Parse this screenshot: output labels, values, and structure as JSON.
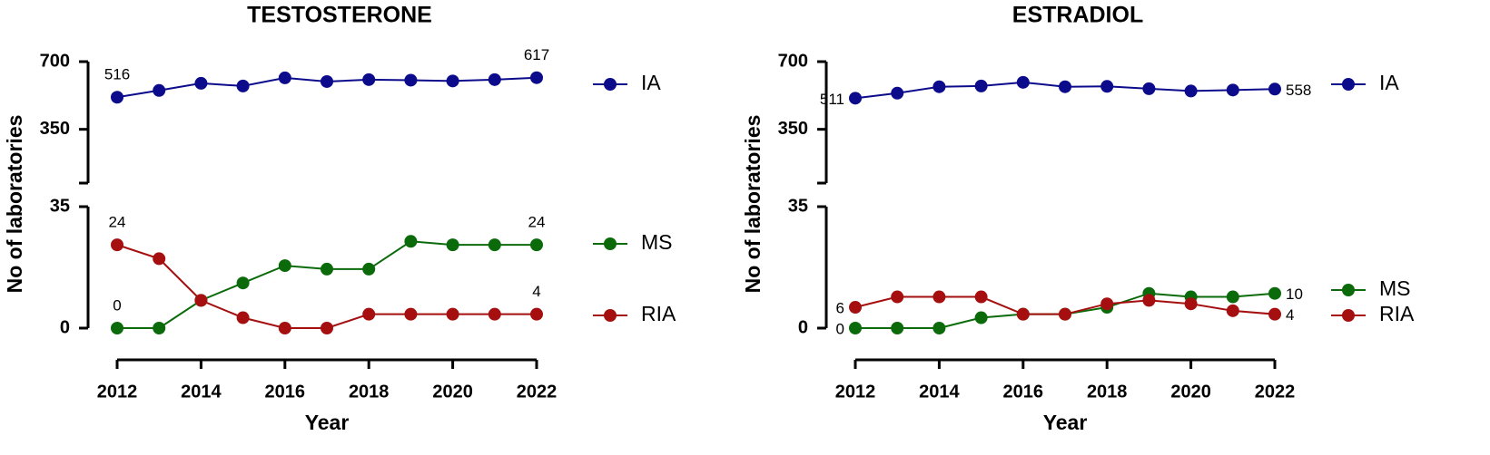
{
  "chart_data": [
    {
      "type": "line",
      "title": "TESTOSTERONE",
      "x_label": "Year",
      "y_label": "No of laboratories",
      "x": [
        2012,
        2013,
        2014,
        2015,
        2016,
        2017,
        2018,
        2019,
        2020,
        2021,
        2022
      ],
      "xlim": [
        2012,
        2022
      ],
      "xticks": [
        2012,
        2014,
        2016,
        2018,
        2020,
        2022
      ],
      "ylim": [
        0,
        35
      ],
      "yticks": [
        0,
        35
      ],
      "y2lim": [
        100,
        700
      ],
      "y2ticks": [
        350,
        700
      ],
      "label_points": "ends",
      "series": [
        {
          "name": "IA",
          "color": "#0b0b8c",
          "axis": "y2",
          "values": [
            516,
            551,
            588,
            574,
            616,
            597,
            607,
            604,
            600,
            607,
            617
          ]
        },
        {
          "name": "MS",
          "color": "#0b6b0b",
          "values": [
            0,
            0,
            8,
            13,
            18,
            17,
            17,
            25,
            24,
            24,
            24
          ]
        },
        {
          "name": "RIA",
          "color": "#a50f0f",
          "values": [
            24,
            20,
            8,
            3,
            0,
            0,
            4,
            4,
            4,
            4,
            4
          ]
        }
      ]
    },
    {
      "type": "line",
      "title": "ESTRADIOL",
      "x_label": "Year",
      "y_label": "No of laboratories",
      "x": [
        2012,
        2013,
        2014,
        2015,
        2016,
        2017,
        2018,
        2019,
        2020,
        2021,
        2022
      ],
      "xlim": [
        2012,
        2022
      ],
      "xticks": [
        2012,
        2014,
        2016,
        2018,
        2020,
        2022
      ],
      "ylim": [
        0,
        35
      ],
      "yticks": [
        0,
        35
      ],
      "y2lim": [
        100,
        700
      ],
      "y2ticks": [
        350,
        700
      ],
      "label_points": "ends",
      "series": [
        {
          "name": "IA",
          "color": "#0b0b8c",
          "axis": "y2",
          "values": [
            511,
            537,
            570,
            574,
            593,
            570,
            572,
            560,
            548,
            553,
            558
          ]
        },
        {
          "name": "MS",
          "color": "#0b6b0b",
          "values": [
            0,
            0,
            0,
            3,
            4,
            4,
            6,
            10,
            9,
            9,
            10
          ]
        },
        {
          "name": "RIA",
          "color": "#a50f0f",
          "values": [
            6,
            9,
            9,
            9,
            4,
            4,
            7,
            8,
            7,
            5,
            4
          ]
        }
      ]
    }
  ]
}
